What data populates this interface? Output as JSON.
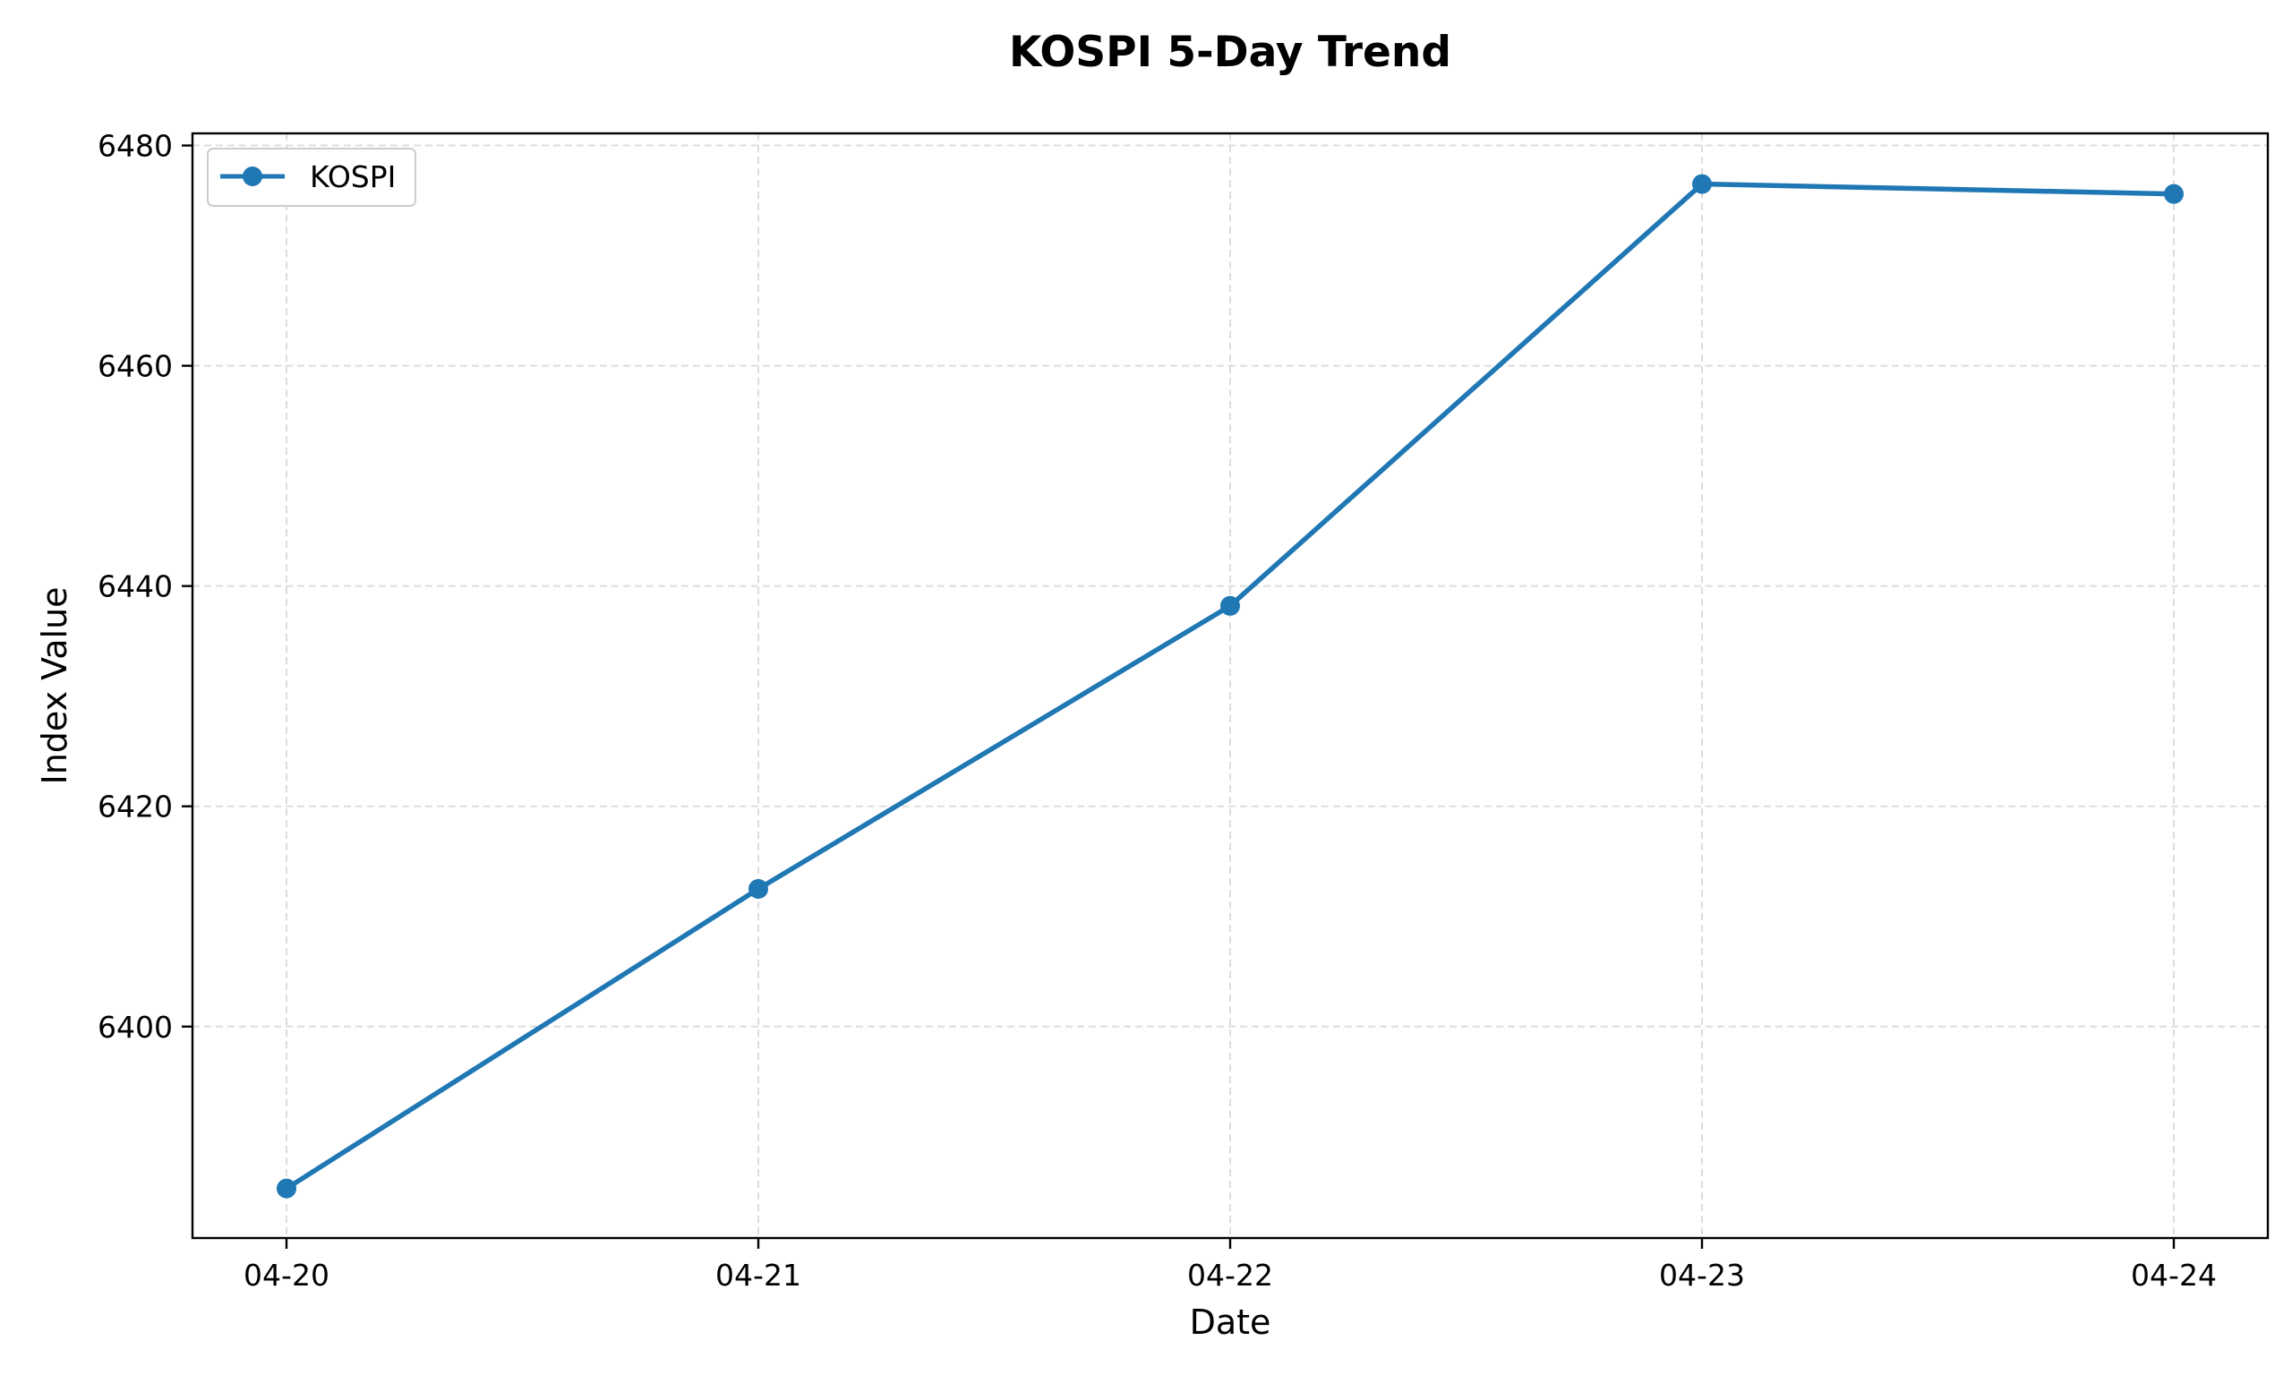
{
  "chart_data": {
    "type": "line",
    "title": "KOSPI 5-Day Trend",
    "xlabel": "Date",
    "ylabel": "Index Value",
    "categories": [
      "04-20",
      "04-21",
      "04-22",
      "04-23",
      "04-24"
    ],
    "series": [
      {
        "name": "KOSPI",
        "values": [
          6385.3,
          6412.5,
          6438.2,
          6476.5,
          6475.6
        ],
        "color": "#1f77b4"
      }
    ],
    "yticks": [
      6400,
      6420,
      6440,
      6460,
      6480
    ],
    "ylim": [
      6380.8,
      6481.1
    ],
    "grid": true,
    "legend_position": "upper-left"
  }
}
